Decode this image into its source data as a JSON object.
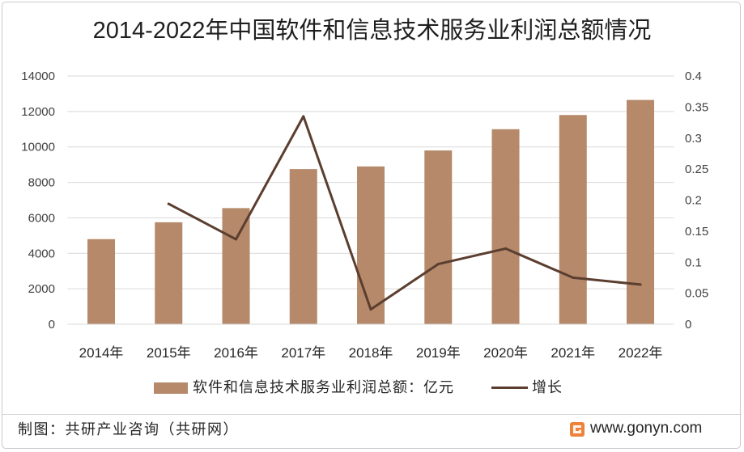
{
  "chart_data": {
    "type": "bar",
    "title": "2014-2022年中国软件和信息技术服务业利润总额情况",
    "categories": [
      "2014年",
      "2015年",
      "2016年",
      "2017年",
      "2018年",
      "2019年",
      "2020年",
      "2021年",
      "2022年"
    ],
    "series": [
      {
        "name": "软件和信息技术服务业利润总额：亿元",
        "type": "bar",
        "axis": "left",
        "color": "#b5896a",
        "values": [
          4800,
          5750,
          6550,
          8750,
          8900,
          9800,
          11000,
          11800,
          12650
        ]
      },
      {
        "name": "增长",
        "type": "line",
        "axis": "right",
        "color": "#5b3e2f",
        "values": [
          null,
          0.194,
          0.137,
          0.335,
          0.024,
          0.097,
          0.122,
          0.075,
          0.064
        ]
      }
    ],
    "y_left": {
      "range": [
        0,
        14000
      ],
      "ticks": [
        0,
        2000,
        4000,
        6000,
        8000,
        10000,
        12000,
        14000
      ]
    },
    "y_right": {
      "range": [
        0,
        0.4
      ],
      "ticks": [
        0,
        0.05,
        0.1,
        0.15,
        0.2,
        0.25,
        0.3,
        0.35,
        0.4
      ]
    },
    "grid": true,
    "legend": "bottom"
  },
  "footer": {
    "source": "制图：共研产业咨询（共研网）",
    "website": "www.gonyn.com",
    "logo_icon": "gonyn-logo-icon"
  }
}
